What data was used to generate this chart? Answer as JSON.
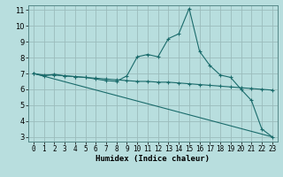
{
  "xlabel": "Humidex (Indice chaleur)",
  "bg_color": "#b8dede",
  "grid_color": "#9bbcbc",
  "line_color": "#1a6b6b",
  "xlim": [
    -0.5,
    23.5
  ],
  "ylim": [
    2.7,
    11.3
  ],
  "yticks": [
    3,
    4,
    5,
    6,
    7,
    8,
    9,
    10,
    11
  ],
  "xticks": [
    0,
    1,
    2,
    3,
    4,
    5,
    6,
    7,
    8,
    9,
    10,
    11,
    12,
    13,
    14,
    15,
    16,
    17,
    18,
    19,
    20,
    21,
    22,
    23
  ],
  "series1_x": [
    0,
    1,
    2,
    3,
    4,
    5,
    6,
    7,
    8,
    9,
    10,
    11,
    12,
    13,
    14,
    15,
    16,
    17,
    18,
    19,
    20,
    21,
    22,
    23
  ],
  "series1_y": [
    7.0,
    6.85,
    6.95,
    6.85,
    6.8,
    6.75,
    6.65,
    6.55,
    6.5,
    6.85,
    8.05,
    8.2,
    8.05,
    9.2,
    9.5,
    11.1,
    8.4,
    7.5,
    6.9,
    6.75,
    6.0,
    5.3,
    3.5,
    3.0
  ],
  "series2_x": [
    0,
    1,
    2,
    3,
    4,
    5,
    6,
    7,
    8,
    9,
    10,
    11,
    12,
    13,
    14,
    15,
    16,
    17,
    18,
    19,
    20,
    21,
    22,
    23
  ],
  "series2_y": [
    7.0,
    6.9,
    6.9,
    6.85,
    6.8,
    6.75,
    6.7,
    6.65,
    6.6,
    6.55,
    6.5,
    6.5,
    6.45,
    6.45,
    6.4,
    6.35,
    6.3,
    6.25,
    6.2,
    6.15,
    6.1,
    6.05,
    6.0,
    5.95
  ],
  "series3_x": [
    0,
    23
  ],
  "series3_y": [
    7.0,
    3.0
  ]
}
